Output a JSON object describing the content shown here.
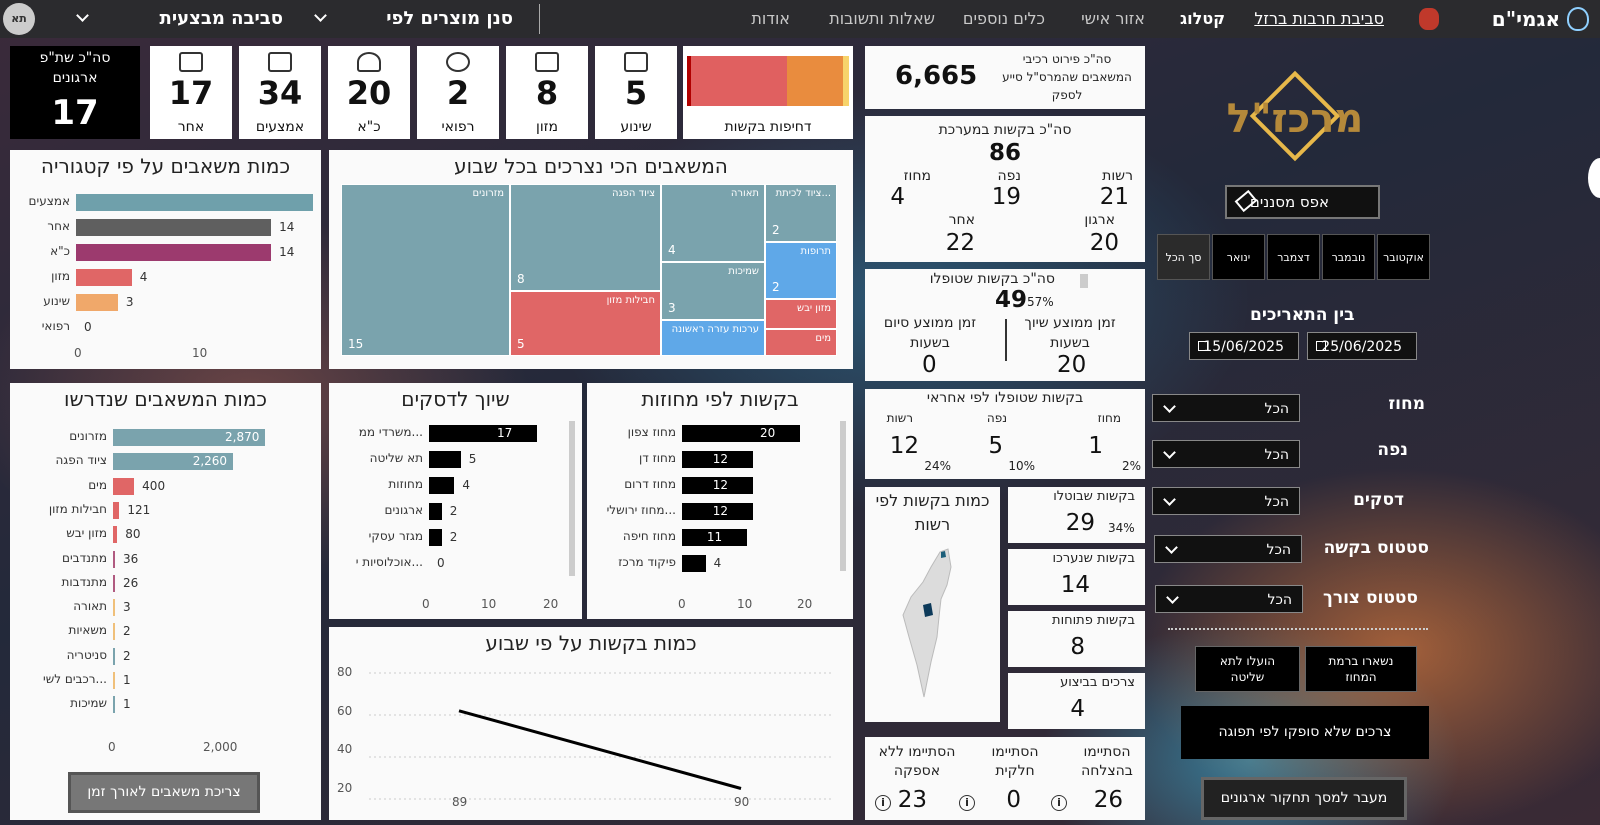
{
  "topbar": {
    "brand": "אגמי\"ם",
    "nav": [
      "סביבת חרבות ברזל",
      "קטלוג",
      "אזור אישי",
      "כלים נוספים",
      "שאלות ותשובות",
      "אודות"
    ],
    "filter1": "סנן מוצרים לפי",
    "filter2": "סביבה מבצעית",
    "avatar": "תא"
  },
  "kpis": {
    "orgs_label": "סה\"כ שת\"פ ארגונים",
    "orgs_value": "17",
    "urgency_label": "דחיפות בקשות",
    "items": [
      {
        "value": "5",
        "label": "שינוע"
      },
      {
        "value": "8",
        "label": "מזון"
      },
      {
        "value": "2",
        "label": "רפואי"
      },
      {
        "value": "20",
        "label": "כ\"א"
      },
      {
        "value": "34",
        "label": "אמצעים"
      },
      {
        "value": "17",
        "label": "אחר"
      }
    ]
  },
  "category": {
    "title": "כמות משאבים על פי קטגוריה",
    "rows": [
      {
        "label": "אמצעים",
        "value": "17",
        "color": "#6fa0ab"
      },
      {
        "label": "אחר",
        "value": "14",
        "color": "#5f5f5f"
      },
      {
        "label": "כ\"א",
        "value": "14",
        "color": "#9c3a6e"
      },
      {
        "label": "מזון",
        "value": "4",
        "color": "#e06666"
      },
      {
        "label": "שינוע",
        "value": "3",
        "color": "#f0a86a"
      },
      {
        "label": "רפואי",
        "value": "0",
        "color": "#cccccc"
      }
    ],
    "ticks": [
      "0",
      "10"
    ]
  },
  "weekly": {
    "title": "המשאבים הכי נצרכים בכל שבוע",
    "cells": [
      {
        "label": "מזרונים",
        "value": "15"
      },
      {
        "label": "ציוד הפגה",
        "value": "8"
      },
      {
        "label": "חבילות מזון",
        "value": "5"
      },
      {
        "label": "תאורה",
        "value": "4"
      },
      {
        "label": "שמיכות",
        "value": "3"
      },
      {
        "label": "ערכות עזרה ראשונה",
        "value": ""
      },
      {
        "label": "...ציוד לכיתת",
        "value": "2"
      },
      {
        "label": "תרופות",
        "value": "2"
      },
      {
        "label": "מזון יבש",
        "value": ""
      },
      {
        "label": "מים",
        "value": ""
      }
    ]
  },
  "required": {
    "title": "כמות המשאבים שנדרשו",
    "rows": [
      {
        "label": "מזרונים",
        "value": "2,870"
      },
      {
        "label": "ציוד הפגה",
        "value": "2,260"
      },
      {
        "label": "מים",
        "value": "400"
      },
      {
        "label": "חבילות מזון",
        "value": "121"
      },
      {
        "label": "מזון יבש",
        "value": "80"
      },
      {
        "label": "מתנדבים",
        "value": "36"
      },
      {
        "label": "מתנדבות",
        "value": "26"
      },
      {
        "label": "תאורה",
        "value": "3"
      },
      {
        "label": "משאיות",
        "value": "2"
      },
      {
        "label": "סניטריה",
        "value": "2"
      },
      {
        "label": "...רכבים לשי",
        "value": "1"
      },
      {
        "label": "שמיכות",
        "value": "1"
      }
    ],
    "ticks": [
      "0",
      "2,000"
    ],
    "button": "צריכת משאבים לאורך זמן"
  },
  "desks": {
    "title": "שיוך לדסקים",
    "rows": [
      {
        "label": "...משרדי ממ",
        "value": "17"
      },
      {
        "label": "תא שליטה",
        "value": "5"
      },
      {
        "label": "מחוזות",
        "value": "4"
      },
      {
        "label": "ארגונים",
        "value": "2"
      },
      {
        "label": "מגזר עסקי",
        "value": "2"
      },
      {
        "label": "...אוכלוסיות י",
        "value": "0"
      }
    ],
    "ticks": [
      "0",
      "10",
      "20"
    ]
  },
  "districts": {
    "title": "בקשות לפי מחוזות",
    "rows": [
      {
        "label": "מחוז צפון",
        "value": "20"
      },
      {
        "label": "מחוז דן",
        "value": "12"
      },
      {
        "label": "מחוז דרום",
        "value": "12"
      },
      {
        "label": "...מחוז ירושלי",
        "value": "12"
      },
      {
        "label": "מחוז חיפה",
        "value": "11"
      },
      {
        "label": "פיקוד מרכז",
        "value": "4"
      }
    ],
    "ticks": [
      "0",
      "10",
      "20"
    ]
  },
  "line_chart": {
    "title": "כמות בקשות על פי שבוע",
    "yticks": [
      "80",
      "60",
      "40",
      "20"
    ],
    "xticks": [
      "89",
      "90"
    ]
  },
  "chart_data": {
    "type": "line",
    "title": "כמות בקשות על פי שבוע",
    "x": [
      89,
      90
    ],
    "y": [
      62,
      25
    ],
    "ylim": [
      20,
      80
    ],
    "xlabel": "",
    "ylabel": ""
  },
  "stats": {
    "aid_value": "6,665",
    "aid_label": "סה\"כ פירוט רכיבי המשאבים שהמרס\"ל סייע לספק",
    "total_label": "סה\"כ בקשות במערכת",
    "total_value": "86",
    "t1_label": "רשות",
    "t1_value": "21",
    "t2_label": "נפה",
    "t2_value": "19",
    "t3_label": "מחוז",
    "t3_value": "4",
    "t4_label": "ארגון",
    "t4_value": "20",
    "t5_label": "אחר",
    "t5_value": "22",
    "handled_label": "סה\"כ בקשות שטופלו",
    "handled_value": "49",
    "handled_pct": "57%",
    "avg_assign_label": "זמן ממוצע שיוך בשעות",
    "avg_assign_value": "20",
    "avg_finish_label": "זמן ממוצע סיום בשעות",
    "avg_finish_value": "0",
    "resp_label": "בקשות שטופלו לפי אחראי",
    "r1_label": "מחוז",
    "r1_value": "1",
    "r1_pct": "2%",
    "r2_label": "נפה",
    "r2_value": "5",
    "r2_pct": "10%",
    "r3_label": "רשות",
    "r3_value": "12",
    "r3_pct": "24%",
    "map_label": "כמות בקשות לפי רשות",
    "cancel_label": "בקשות שבוטלו",
    "cancel_value": "29",
    "cancel_pct": "34%",
    "merged_label": "בקשות שנערכו",
    "merged_value": "14",
    "open_label": "בקשות פתוחות",
    "open_value": "8",
    "exec_label": "צרכים בביצוע",
    "exec_value": "4",
    "s1_label": "הסתיימו בהצלחה",
    "s1_value": "26",
    "s2_label": "הסתיימו חלקית",
    "s2_value": "0",
    "s3_label": "הסתיימו ללא אספקה",
    "s3_value": "23"
  },
  "panel": {
    "logo": "מרכז\"ל",
    "reset": "אפס מסננים",
    "months": [
      "אוקטובר",
      "נובמבר",
      "דצמבר",
      "ינואר",
      "סך הכל"
    ],
    "dates_label": "בין התאריכים",
    "date1": "25/06/2025",
    "date2": "15/06/2025",
    "filters": [
      {
        "label": "מחוז",
        "value": "הכל"
      },
      {
        "label": "נפה",
        "value": "הכל"
      },
      {
        "label": "דסקים",
        "value": "הכל"
      },
      {
        "label": "סטטוס בקשה",
        "value": "הכל"
      },
      {
        "label": "סטטוס צורך",
        "value": "הכל"
      }
    ],
    "btn1": "נשארו ברמת המחוז",
    "btn2": "הועלו לתא שליטה",
    "btn3": "צרכים שלא סופקו לפי תפוגה",
    "btn4": "מעבר למסך תחקור ארגונים"
  }
}
